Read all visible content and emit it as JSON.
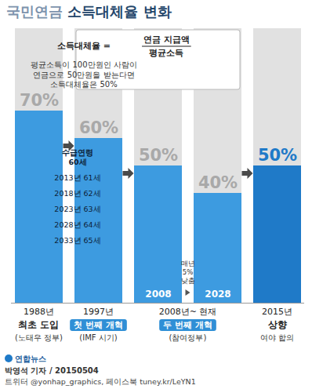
{
  "chart_data": {
    "type": "bar",
    "title": "국민연금 소득대체율 변화",
    "categories": [
      null,
      null,
      "2008",
      "2028",
      null
    ],
    "values": [
      70,
      60,
      50,
      40,
      50
    ],
    "value_labels": [
      "70%",
      "60%",
      "50%",
      "40%",
      "50%"
    ],
    "data_labels": true,
    "colors": [
      "#3d9be0",
      "#3d9be0",
      "#3d9be0",
      "#3d9be0",
      "#1f7ac8"
    ],
    "ylim": [
      0,
      100
    ],
    "tick_labels": false,
    "annotations": {
      "formula": {
        "left": "소득대체율 =",
        "numerator": "연금 지급액",
        "denominator": "평균소득",
        "example": [
          "평균소득이 100만원인 사람이",
          "연금으로 50만원을 받는다면",
          "소득대체율은 50%"
        ]
      },
      "periods": [
        {
          "bars": [
            0
          ],
          "year": "1988년",
          "event": "최초 도입",
          "note": "(노태우 정부)"
        },
        {
          "bars": [
            1
          ],
          "year": "1997년",
          "reform": "첫 번째 개혁",
          "note": "(IMF 시기)",
          "details": {
            "head": [
              "수급연령",
              "60세"
            ],
            "schedule": [
              "2013년 61세",
              "2018년 62세",
              "2023년 63세",
              "2028년 64세",
              "2033년 65세"
            ]
          }
        },
        {
          "bars": [
            2,
            3
          ],
          "year": "2008년~ 현재",
          "reform": "두 번째 개혁",
          "note": "(참여정부)",
          "decline": [
            "매년",
            "5%",
            "낮춤"
          ]
        },
        {
          "bars": [
            4
          ],
          "year": "2015년",
          "event": "상향",
          "note": "여야 합의"
        }
      ]
    },
    "credits": [
      "박영석 기자 / 20150504",
      "트위터 @yonhap_graphics, 페이스북 tuney.kr/LeYN1"
    ],
    "logo": "연합뉴스"
  }
}
